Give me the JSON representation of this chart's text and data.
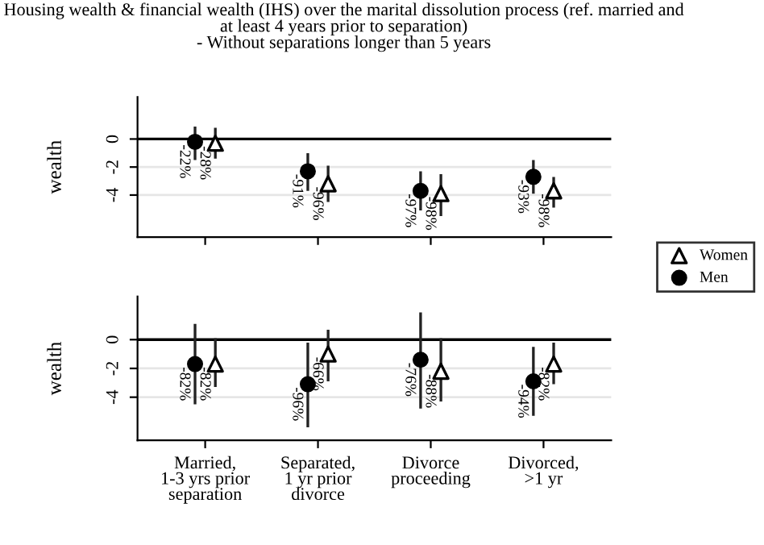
{
  "chart_data": [
    {
      "type": "scatter",
      "title": "Housing wealth & financial wealth (IHS) over the marital dissolution process (ref. married and at least 4 years prior to separation)\n- Without separations longer than 5 years",
      "ylabel": "wealth",
      "categories": [
        "Married,\n1-3 yrs prior\nseparation",
        "Separated,\n1 yr prior\ndivorce",
        "Divorce\nproceeding",
        "Divorced,\n>1 yr"
      ],
      "series": [
        {
          "name": "Men",
          "color": "#000000",
          "marker": "circle",
          "values": [
            -0.2,
            -2.3,
            -3.7,
            -2.7
          ],
          "errors": [
            [
              -1.4,
              0.8
            ],
            [
              -3.6,
              -1.1
            ],
            [
              -5.0,
              -2.4
            ],
            [
              -3.8,
              -1.6
            ]
          ]
        },
        {
          "name": "Women",
          "color": "#000000",
          "marker": "triangle",
          "values": [
            -0.3,
            -3.2,
            -3.9,
            -3.7
          ],
          "errors": [
            [
              -1.3,
              0.7
            ],
            [
              -4.4,
              -2.0
            ],
            [
              -5.4,
              -2.6
            ],
            [
              -4.8,
              -2.8
            ]
          ]
        }
      ],
      "annotations": [
        {
          "text": "-22%",
          "x": "Married,\n1-3 yrs prior\nseparation",
          "y": -0.2
        },
        {
          "text": "-91%",
          "x": "Separated,\n1 yr prior\ndivorce",
          "y": -2.3
        },
        {
          "text": "-97%",
          "x": "Divorce\nproceeding",
          "y": -3.7
        },
        {
          "text": "-93%",
          "x": "Divorced,\n>1 yr",
          "y": -2.7
        },
        {
          "text": "-28%",
          "x": "Married,\n1-3 yrs prior\nseparation",
          "y": -0.3
        },
        {
          "text": "-96%",
          "x": "Separated,\n1 yr prior\ndivorce",
          "y": -3.2
        },
        {
          "text": "-98%",
          "x": "Divorce\nproceeding",
          "y": -3.9
        },
        {
          "text": "-98%",
          "x": "Divorced,\n>1 yr",
          "y": -3.7
        }
      ],
      "ylim": [
        -7,
        3
      ],
      "yticks": [
        -4,
        -2,
        0
      ],
      "grid": "y",
      "ref_lines": [
        {
          "axis": "y",
          "value": 0,
          "color": "#000000"
        }
      ],
      "legend": "right",
      "tick_labels": "y"
    },
    {
      "type": "scatter",
      "ylabel": "wealth",
      "categories": [
        "Married,\n1-3 yrs prior\nseparation",
        "Separated,\n1 yr prior\ndivorce",
        "Divorce\nproceeding",
        "Divorced,\n>1 yr"
      ],
      "series": [
        {
          "color": "#000000",
          "marker": "circle",
          "values": [
            -1.7,
            -3.1,
            -1.4,
            -2.9
          ],
          "errors": [
            [
              -4.4,
              1.0
            ],
            [
              -6.0,
              -0.3
            ],
            [
              -4.7,
              1.8
            ],
            [
              -5.2,
              -0.6
            ]
          ]
        },
        {
          "color": "#000000",
          "marker": "triangle",
          "values": [
            -1.7,
            -1.0,
            -2.2,
            -1.7
          ],
          "errors": [
            [
              -3.2,
              0.0
            ],
            [
              -2.8,
              0.6
            ],
            [
              -4.2,
              0.0
            ],
            [
              -3.0,
              -0.3
            ]
          ]
        }
      ],
      "annotations": [
        {
          "text": "-82%",
          "x": "Married,\n1-3 yrs prior\nseparation",
          "y": -1.7
        },
        {
          "text": "-96%",
          "x": "Separated,\n1 yr prior\ndivorce",
          "y": -3.1
        },
        {
          "text": "-76%",
          "x": "Divorce\nproceeding",
          "y": -1.4
        },
        {
          "text": "-94%",
          "x": "Divorced,\n>1 yr",
          "y": -2.9
        },
        {
          "text": "-82%",
          "x": "Married,\n1-3 yrs prior\nseparation",
          "y": -1.7
        },
        {
          "text": "-66%",
          "x": "Separated,\n1 yr prior\ndivorce",
          "y": -1.0
        },
        {
          "text": "-88%",
          "x": "Divorce\nproceeding",
          "y": -2.2
        },
        {
          "text": "-82%",
          "x": "Divorced,\n>1 yr",
          "y": -1.7
        }
      ],
      "ylim": [
        -7,
        3
      ],
      "yticks": [
        -4,
        -2,
        0
      ],
      "grid": "y",
      "ref_lines": [
        {
          "axis": "y",
          "value": 0,
          "color": "#000000"
        }
      ]
    }
  ]
}
